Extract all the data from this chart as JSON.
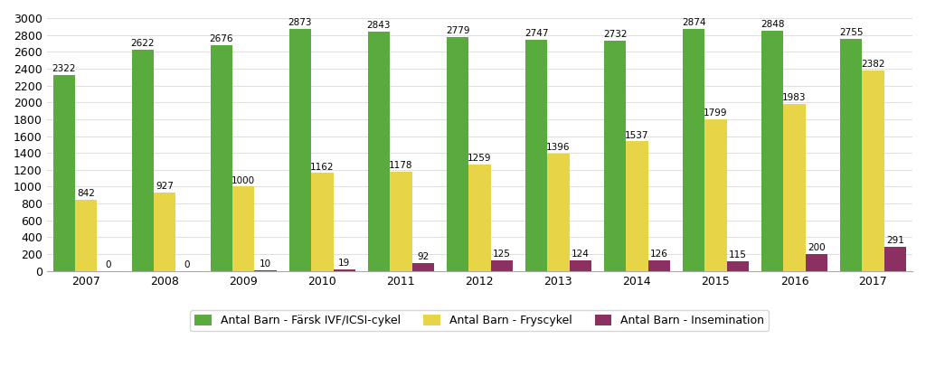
{
  "years": [
    2007,
    2008,
    2009,
    2010,
    2011,
    2012,
    2013,
    2014,
    2015,
    2016,
    2017
  ],
  "green_values": [
    2322,
    2622,
    2676,
    2873,
    2843,
    2779,
    2747,
    2732,
    2874,
    2848,
    2755
  ],
  "yellow_values": [
    842,
    927,
    1000,
    1162,
    1178,
    1259,
    1396,
    1537,
    1799,
    1983,
    2382
  ],
  "purple_values": [
    0,
    0,
    10,
    19,
    92,
    125,
    124,
    126,
    115,
    200,
    291
  ],
  "green_color": "#5aab3e",
  "yellow_color": "#e8d447",
  "purple_color": "#8b3060",
  "background_color": "#ffffff",
  "grid_color": "#e0e0e0",
  "ylim": [
    0,
    3000
  ],
  "yticks": [
    0,
    200,
    400,
    600,
    800,
    1000,
    1200,
    1400,
    1600,
    1800,
    2000,
    2200,
    2400,
    2600,
    2800,
    3000
  ],
  "legend_labels": [
    "Antal Barn - Färsk IVF/ICSI-cykel",
    "Antal Barn - Fryscykel",
    "Antal Barn - Insemination"
  ],
  "bar_width": 0.28,
  "label_fontsize": 7.5,
  "tick_fontsize": 9,
  "legend_fontsize": 9
}
